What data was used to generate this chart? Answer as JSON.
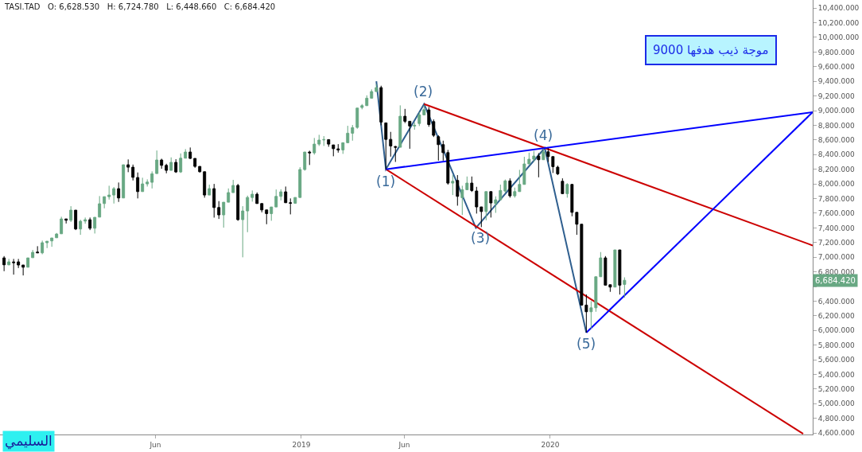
{
  "chart_data": {
    "type": "candlestick",
    "colors": [
      "#000000",
      "#68a883",
      "#000000",
      "#000000",
      "#000000",
      "#68a883",
      "#68a883",
      "#000000",
      "#68a883",
      "#68a883",
      "#68a883",
      "#68a883",
      "#68a883",
      "#000000",
      "#68a883",
      "#000000",
      "#68a883",
      "#68a883",
      "#000000",
      "#68a883",
      "#68a883",
      "#68a883",
      "#68a883",
      "#68a883",
      "#000000",
      "#68a883",
      "#000000",
      "#000000",
      "#000000",
      "#68a883",
      "#68a883",
      "#68a883",
      "#68a883",
      "#000000",
      "#000000",
      "#68a883",
      "#000000",
      "#68a883",
      "#68a883",
      "#000000",
      "#000000",
      "#000000",
      "#000000",
      "#68a883",
      "#000000",
      "#000000",
      "#68a883",
      "#68a883",
      "#68a883",
      "#000000",
      "#68a883",
      "#68a883",
      "#68a883",
      "#000000",
      "#000000",
      "#000000",
      "#68a883",
      "#68a883",
      "#68a883",
      "#000000",
      "#000000",
      "#68a883",
      "#68a883",
      "#68a883",
      "#000000",
      "#68a883",
      "#68a883",
      "#68a883",
      "#000000",
      "#000000",
      "#000000",
      "#68a883",
      "#68a883",
      "#68a883",
      "#68a883",
      "#68a883",
      "#68a883",
      "#68a883",
      "#68a883",
      "#000000",
      "#000000",
      "#000000",
      "#000000",
      "#68a883",
      "#000000",
      "#000000",
      "#68a883",
      "#68a883",
      "#68a883",
      "#000000",
      "#000000",
      "#000000",
      "#000000",
      "#000000",
      "#68a883",
      "#000000",
      "#68a883",
      "#68a883",
      "#000000",
      "#000000",
      "#000000",
      "#68a883",
      "#000000",
      "#68a883",
      "#68a883",
      "#68a883",
      "#000000",
      "#68a883",
      "#68a883",
      "#68a883",
      "#68a883",
      "#68a883",
      "#000000",
      "#68a883",
      "#000000",
      "#000000",
      "#000000",
      "#000000",
      "#68a883",
      "#000000",
      "#000000",
      "#000000",
      "#000000",
      "#68a883",
      "#68a883",
      "#68a883",
      "#000000",
      "#000000",
      "#68a883",
      "#000000",
      "#68a883"
    ],
    "x": [
      "2017-10-22",
      "2017-10-29",
      "2017-11-05",
      "2017-11-12",
      "2017-11-19",
      "2017-11-26",
      "2017-12-03",
      "2017-12-10",
      "2017-12-17",
      "2017-12-24",
      "2017-12-31",
      "2018-01-07",
      "2018-01-14",
      "2018-01-21",
      "2018-01-28",
      "2018-02-04",
      "2018-02-11",
      "2018-02-18",
      "2018-02-25",
      "2018-03-04",
      "2018-03-11",
      "2018-03-18",
      "2018-03-25",
      "2018-04-01",
      "2018-04-08",
      "2018-04-15",
      "2018-04-22",
      "2018-04-29",
      "2018-05-06",
      "2018-05-13",
      "2018-05-20",
      "2018-05-27",
      "2018-06-03",
      "2018-06-10",
      "2018-06-17",
      "2018-06-24",
      "2018-07-01",
      "2018-07-08",
      "2018-07-15",
      "2018-07-22",
      "2018-07-29",
      "2018-08-05",
      "2018-08-12",
      "2018-08-19",
      "2018-08-26",
      "2018-09-02",
      "2018-09-09",
      "2018-09-16",
      "2018-09-23",
      "2018-09-30",
      "2018-10-07",
      "2018-10-14",
      "2018-10-21",
      "2018-10-28",
      "2018-11-04",
      "2018-11-11",
      "2018-11-18",
      "2018-11-25",
      "2018-12-02",
      "2018-12-09",
      "2018-12-16",
      "2018-12-23",
      "2018-12-30",
      "2019-01-06",
      "2019-01-13",
      "2019-01-20",
      "2019-01-27",
      "2019-02-03",
      "2019-02-10",
      "2019-02-17",
      "2019-02-24",
      "2019-03-03",
      "2019-03-10",
      "2019-03-17",
      "2019-03-24",
      "2019-03-31",
      "2019-04-07",
      "2019-04-14",
      "2019-04-21",
      "2019-04-28",
      "2019-05-05",
      "2019-05-12",
      "2019-05-19",
      "2019-05-26",
      "2019-06-02",
      "2019-06-09",
      "2019-06-16",
      "2019-06-23",
      "2019-06-30",
      "2019-07-07",
      "2019-07-14",
      "2019-07-21",
      "2019-07-28",
      "2019-08-04",
      "2019-08-11",
      "2019-08-18",
      "2019-08-25",
      "2019-09-01",
      "2019-09-08",
      "2019-09-15",
      "2019-09-22",
      "2019-09-29",
      "2019-10-06",
      "2019-10-13",
      "2019-10-20",
      "2019-10-27",
      "2019-11-03",
      "2019-11-10",
      "2019-11-17",
      "2019-11-24",
      "2019-12-01",
      "2019-12-08",
      "2019-12-15",
      "2019-12-22",
      "2019-12-29",
      "2020-01-05",
      "2020-01-12",
      "2020-01-19",
      "2020-01-26",
      "2020-02-02",
      "2020-02-09",
      "2020-02-16",
      "2020-02-23",
      "2020-03-01",
      "2020-03-08",
      "2020-03-15",
      "2020-03-22",
      "2020-03-29",
      "2020-04-05",
      "2020-04-12",
      "2020-04-19"
    ],
    "ohlc": [
      [
        6990,
        7015,
        6809,
        6896
      ],
      [
        6896,
        6976,
        6889,
        6936
      ],
      [
        6935,
        6976,
        6762,
        6925
      ],
      [
        6936,
        6976,
        6852,
        6893
      ],
      [
        6893,
        6893,
        6751,
        6863
      ],
      [
        6863,
        6990,
        6863,
        6990
      ],
      [
        6993,
        7099,
        6993,
        7066
      ],
      [
        7070,
        7150,
        7055,
        7060
      ],
      [
        7059,
        7226,
        7040,
        7197
      ],
      [
        7197,
        7218,
        7124,
        7218
      ],
      [
        7222,
        7262,
        7142,
        7262
      ],
      [
        7265,
        7330,
        7265,
        7316
      ],
      [
        7319,
        7552,
        7319,
        7522
      ],
      [
        7522,
        7522,
        7460,
        7504
      ],
      [
        7504,
        7696,
        7480,
        7642
      ],
      [
        7642,
        7642,
        7370,
        7385
      ],
      [
        7385,
        7511,
        7305,
        7490
      ],
      [
        7493,
        7541,
        7457,
        7511
      ],
      [
        7511,
        7541,
        7370,
        7395
      ],
      [
        7395,
        7544,
        7323,
        7544
      ],
      [
        7547,
        7834,
        7547,
        7729
      ],
      [
        7732,
        7826,
        7667,
        7826
      ],
      [
        7826,
        7975,
        7786,
        7848
      ],
      [
        7848,
        7957,
        7732,
        7935
      ],
      [
        7935,
        8019,
        7754,
        7808
      ],
      [
        7808,
        8261,
        7808,
        8261
      ],
      [
        8261,
        8334,
        8160,
        8228
      ],
      [
        8228,
        8264,
        8047,
        8090
      ],
      [
        8087,
        8156,
        7802,
        7895
      ],
      [
        7895,
        8084,
        7895,
        8000
      ],
      [
        8000,
        8062,
        7964,
        8025
      ],
      [
        8022,
        8171,
        7938,
        8138
      ],
      [
        8141,
        8456,
        8141,
        8326
      ],
      [
        8326,
        8344,
        8207,
        8253
      ],
      [
        8253,
        8275,
        8145,
        8185
      ],
      [
        8185,
        8362,
        8185,
        8294
      ],
      [
        8294,
        8337,
        8150,
        8163
      ],
      [
        8163,
        8416,
        8150,
        8351
      ],
      [
        8351,
        8475,
        8351,
        8435
      ],
      [
        8435,
        8497,
        8340,
        8348
      ],
      [
        8348,
        8348,
        8220,
        8239
      ],
      [
        8239,
        8239,
        8155,
        8166
      ],
      [
        8166,
        8166,
        7812,
        7848
      ],
      [
        7848,
        7990,
        7848,
        7935
      ],
      [
        7935,
        8000,
        7540,
        7678
      ],
      [
        7678,
        7765,
        7522,
        7577
      ],
      [
        7577,
        7750,
        7403,
        7750
      ],
      [
        7750,
        7938,
        7750,
        7881
      ],
      [
        7881,
        8055,
        7881,
        7979
      ],
      [
        7979,
        8000,
        7497,
        7512
      ],
      [
        7512,
        7696,
        6998,
        7631
      ],
      [
        7631,
        7840,
        7341,
        7815
      ],
      [
        7815,
        7910,
        7758,
        7859
      ],
      [
        7859,
        7884,
        7732,
        7732
      ],
      [
        7732,
        7732,
        7612,
        7645
      ],
      [
        7645,
        7645,
        7450,
        7595
      ],
      [
        7595,
        7685,
        7497,
        7685
      ],
      [
        7685,
        7924,
        7685,
        7830
      ],
      [
        7830,
        7927,
        7775,
        7892
      ],
      [
        7892,
        7964,
        7743,
        7743
      ],
      [
        7743,
        7802,
        7584,
        7736
      ],
      [
        7736,
        7815,
        7736,
        7815
      ],
      [
        7815,
        8228,
        7815,
        8196
      ],
      [
        8196,
        8435,
        8181,
        8435
      ],
      [
        8435,
        8453,
        8258,
        8424
      ],
      [
        8424,
        8627,
        8399,
        8543
      ],
      [
        8543,
        8670,
        8518,
        8598
      ],
      [
        8600,
        8652,
        8518,
        8605
      ],
      [
        8605,
        8605,
        8507,
        8543
      ],
      [
        8532,
        8532,
        8377,
        8481
      ],
      [
        8478,
        8543,
        8427,
        8464
      ],
      [
        8464,
        8562,
        8410,
        8562
      ],
      [
        8562,
        8793,
        8562,
        8692
      ],
      [
        8692,
        8804,
        8590,
        8768
      ],
      [
        8771,
        9035,
        8753,
        9035
      ],
      [
        9043,
        9090,
        9018,
        9068
      ],
      [
        9068,
        9209,
        9068,
        9170
      ],
      [
        9170,
        9290,
        9170,
        9260
      ],
      [
        9260,
        9360,
        9260,
        9314
      ],
      [
        9314,
        9340,
        8800,
        8844
      ],
      [
        8833,
        8833,
        8200,
        8608
      ],
      [
        8608,
        8710,
        8372,
        8518
      ],
      [
        8510,
        8518,
        8300,
        8500
      ],
      [
        8500,
        9072,
        8500,
        8923
      ],
      [
        8923,
        9024,
        8830,
        8855
      ],
      [
        8855,
        8855,
        8480,
        8790
      ],
      [
        8790,
        8840,
        8740,
        8800
      ],
      [
        8825,
        8980,
        8790,
        8942
      ],
      [
        8942,
        9072,
        8942,
        9013
      ],
      [
        9010,
        9050,
        8780,
        8810
      ],
      [
        8850,
        8880,
        8640,
        8663
      ],
      [
        8644,
        8663,
        8318,
        8536
      ],
      [
        8536,
        8590,
        8318,
        8427
      ],
      [
        8427,
        8464,
        7990,
        8011
      ],
      [
        8011,
        8120,
        7848,
        8036
      ],
      [
        8047,
        8120,
        7703,
        7830
      ],
      [
        7812,
        7975,
        7577,
        7921
      ],
      [
        7921,
        8101,
        7921,
        8011
      ],
      [
        8011,
        8101,
        7890,
        7910
      ],
      [
        7903,
        7960,
        7595,
        7686
      ],
      [
        7686,
        7686,
        7410,
        7623
      ],
      [
        7623,
        7895,
        7504,
        7895
      ],
      [
        7895,
        7895,
        7541,
        7740
      ],
      [
        7732,
        7830,
        7605,
        7783
      ],
      [
        7783,
        7990,
        7783,
        7910
      ],
      [
        7903,
        8060,
        7880,
        8041
      ],
      [
        8041,
        8076,
        7812,
        7837
      ],
      [
        7837,
        7950,
        7812,
        7895
      ],
      [
        7895,
        8192,
        7895,
        7993
      ],
      [
        7993,
        8370,
        7993,
        8272
      ],
      [
        8272,
        8427,
        8272,
        8337
      ],
      [
        8337,
        8450,
        8300,
        8380
      ],
      [
        8380,
        8420,
        8090,
        8330
      ],
      [
        8330,
        8480,
        8330,
        8438
      ],
      [
        8438,
        8488,
        8300,
        8373
      ],
      [
        8373,
        8373,
        8149,
        8236
      ],
      [
        8228,
        8250,
        8120,
        8138
      ],
      [
        8036,
        8076,
        7860,
        7867
      ],
      [
        7867,
        8010,
        7812,
        7993
      ],
      [
        7993,
        8000,
        7558,
        7612
      ],
      [
        7612,
        7612,
        7305,
        7450
      ],
      [
        7450,
        7450,
        6340,
        6346
      ],
      [
        6346,
        6491,
        5970,
        6255
      ],
      [
        6255,
        6400,
        6020,
        6309
      ],
      [
        6309,
        6733,
        6255,
        6733
      ],
      [
        6733,
        7070,
        6733,
        6990
      ],
      [
        6990,
        7015,
        6618,
        6618
      ],
      [
        6624,
        6624,
        6527,
        6592
      ],
      [
        6592,
        7099,
        6592,
        7099
      ],
      [
        7099,
        7099,
        6490,
        6618
      ],
      [
        6628.53,
        6724.78,
        6448.66,
        6684.42
      ]
    ],
    "series": [
      {
        "type": "line",
        "color": "#2f5f8f",
        "x": [
          "2019-04-21",
          "2019-05-05",
          "2019-06-30",
          "2019-09-14",
          "2019-12-24",
          "2020-02-23"
        ],
        "values": [
          9400,
          8200,
          9090,
          7400,
          8490,
          5970
        ]
      },
      {
        "type": "line",
        "color": "#cc0000",
        "x": [
          "2019-06-30",
          "2021-01-20"
        ],
        "values": [
          9090,
          7160
        ]
      },
      {
        "type": "line",
        "color": "#cc0000",
        "x": [
          "2019-05-05",
          "2021-01-06"
        ],
        "values": [
          8200,
          4590
        ]
      },
      {
        "type": "line",
        "color": "#0000ff",
        "x": [
          "2019-05-05",
          "2021-01-20"
        ],
        "values": [
          8200,
          8980
        ]
      },
      {
        "type": "line",
        "color": "#0000ff",
        "x": [
          "2020-02-23",
          "2021-01-20"
        ],
        "values": [
          5970,
          8980
        ]
      }
    ],
    "annotations": [
      "TASI.TAD   O: 6,628.530   H: 6,724.780   L: 6,448.660   C: 6,684.420",
      "موجة ذيب هدفها 9000",
      "السليمي",
      "(1)",
      "(2)",
      "(3)",
      "(4)",
      "(5)",
      "6,684.420"
    ],
    "xlim": [
      "2017-10-16",
      "2021-01-20"
    ],
    "xticks": [
      {
        "value": "2018-06-01",
        "label": "Jun"
      },
      {
        "value": "2019-01-01",
        "label": "2019"
      },
      {
        "value": "2019-06-01",
        "label": "Jun"
      },
      {
        "value": "2020-01-01",
        "label": "2020"
      }
    ],
    "ylim": [
      4580,
      10510
    ],
    "yticks": [
      {
        "value": 4600,
        "label": "4,600.000"
      },
      {
        "value": 4800,
        "label": "4,800.000"
      },
      {
        "value": 5000,
        "label": "5,000.000"
      },
      {
        "value": 5200,
        "label": "5,200.000"
      },
      {
        "value": 5400,
        "label": "5,400.000"
      },
      {
        "value": 5600,
        "label": "5,600.000"
      },
      {
        "value": 5800,
        "label": "5,800.000"
      },
      {
        "value": 6000,
        "label": "6,000.000"
      },
      {
        "value": 6200,
        "label": "6,200.000"
      },
      {
        "value": 6400,
        "label": "6,400.000"
      },
      {
        "value": 6600,
        "label": null
      },
      {
        "value": 6800,
        "label": "6,800.000"
      },
      {
        "value": 7000,
        "label": "7,000.000"
      },
      {
        "value": 7200,
        "label": "7,200.000"
      },
      {
        "value": 7400,
        "label": "7,400.000"
      },
      {
        "value": 7600,
        "label": "7,600.000"
      },
      {
        "value": 7800,
        "label": "7,800.000"
      },
      {
        "value": 8000,
        "label": "8,000.000"
      },
      {
        "value": 8200,
        "label": "8,200.000"
      },
      {
        "value": 8400,
        "label": "8,400.000"
      },
      {
        "value": 8600,
        "label": "8,600.000"
      },
      {
        "value": 8800,
        "label": "8,800.000"
      },
      {
        "value": 9000,
        "label": "9,000.000"
      },
      {
        "value": 9200,
        "label": "9,200.000"
      },
      {
        "value": 9400,
        "label": "9,400.000"
      },
      {
        "value": 9600,
        "label": "9,600.000"
      },
      {
        "value": 9800,
        "label": "9,800.000"
      },
      {
        "value": 10000,
        "label": "10,000.000"
      },
      {
        "value": 10200,
        "label": "10,200.000"
      },
      {
        "value": 10400,
        "label": "10,400.000"
      }
    ],
    "grid": false
  }
}
